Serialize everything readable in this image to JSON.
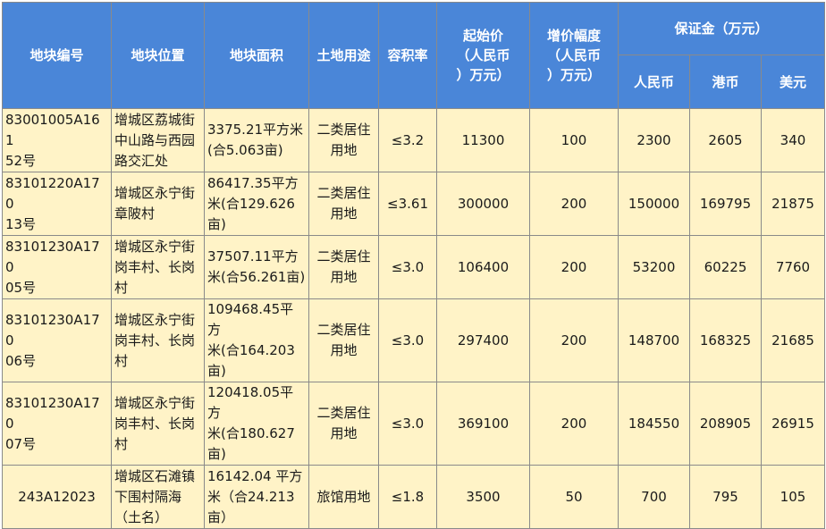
{
  "headers": {
    "code": "地块编号",
    "location": "地块位置",
    "area": "地块面积",
    "use": "土地用途",
    "far": "容积率",
    "start_price": [
      "起始价",
      "（人民币",
      "）万元）"
    ],
    "increment": [
      "增价幅度",
      "（人民币",
      "）万元）"
    ],
    "deposit": "保证金（万元）",
    "rmb": "人民币",
    "hkd": "港币",
    "usd": "美元"
  },
  "rows": [
    {
      "code": [
        "83001005A161",
        "52号"
      ],
      "location": [
        "增城区荔城街",
        "中山路与西园",
        "路交汇处"
      ],
      "area": [
        "3375.21平方米",
        "(合5.063亩)"
      ],
      "use": [
        "二类居住",
        "用地"
      ],
      "far": "≤3.2",
      "start_price": "11300",
      "increment": "100",
      "rmb": "2300",
      "hkd": "2605",
      "usd": "340"
    },
    {
      "code": [
        "83101220A170",
        "13号"
      ],
      "location": [
        "增城区永宁街",
        "章陂村"
      ],
      "area": [
        "86417.35平方",
        "米(合129.626",
        "亩)"
      ],
      "use": [
        "二类居住",
        "用地"
      ],
      "far": "≤3.61",
      "start_price": "300000",
      "increment": "200",
      "rmb": "150000",
      "hkd": "169795",
      "usd": "21875"
    },
    {
      "code": [
        "83101230A170",
        "05号"
      ],
      "location": [
        "增城区永宁街",
        "岗丰村、长岗",
        "村"
      ],
      "area": [
        "37507.11平方",
        "米(合56.261亩)"
      ],
      "use": [
        "二类居住",
        "用地"
      ],
      "far": "≤3.0",
      "start_price": "106400",
      "increment": "200",
      "rmb": "53200",
      "hkd": "60225",
      "usd": "7760"
    },
    {
      "code": [
        "83101230A170",
        "06号"
      ],
      "location": [
        "增城区永宁街",
        "岗丰村、长岗",
        "村"
      ],
      "area": [
        "109468.45平方",
        "米(合164.203",
        "亩)"
      ],
      "use": [
        "二类居住",
        "用地"
      ],
      "far": "≤3.0",
      "start_price": "297400",
      "increment": "200",
      "rmb": "148700",
      "hkd": "168325",
      "usd": "21685"
    },
    {
      "code": [
        "83101230A170",
        "07号"
      ],
      "location": [
        "增城区永宁街",
        "岗丰村、长岗",
        "村"
      ],
      "area": [
        "120418.05平方",
        "米(合180.627",
        "亩)"
      ],
      "use": [
        "二类居住",
        "用地"
      ],
      "far": "≤3.0",
      "start_price": "369100",
      "increment": "200",
      "rmb": "184550",
      "hkd": "208905",
      "usd": "26915"
    },
    {
      "code": [
        "243A12023"
      ],
      "location": [
        "增城区石滩镇",
        "下围村隔海",
        "（土名）"
      ],
      "area": [
        "16142.04 平方",
        "米（合24.213",
        "亩）"
      ],
      "use": [
        "旅馆用地"
      ],
      "far": "≤1.8",
      "start_price": "3500",
      "increment": "50",
      "rmb": "700",
      "hkd": "795",
      "usd": "105"
    }
  ]
}
